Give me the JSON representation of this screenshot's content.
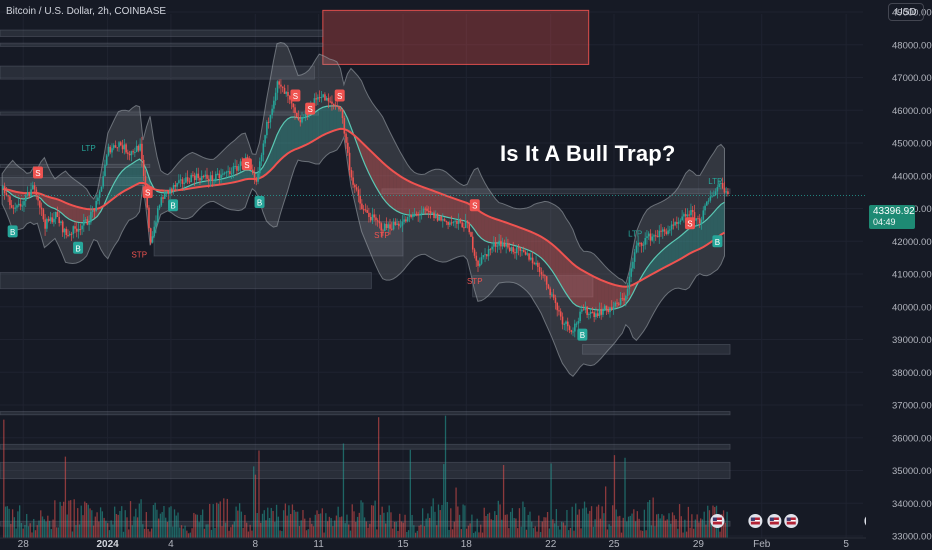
{
  "header": {
    "title": "Bitcoin / U.S. Dollar, 2h, COINBASE",
    "currency": "USD"
  },
  "annotation": {
    "text": "Is It A Bull Trap?"
  },
  "last_price": {
    "value": "43396.92",
    "countdown": "04:49",
    "color": "#1e8a74"
  },
  "colors": {
    "up": "#26a69a",
    "down": "#ef5350",
    "ema": "#ef5350",
    "ema_fast": "#5ac8b4",
    "band": "#9aa0a6",
    "zone": "#ef5350",
    "background": "#161a25"
  },
  "chart_data": {
    "type": "candlestick",
    "title": "Bitcoin / U.S. Dollar, 2h, COINBASE",
    "ylim": [
      33000,
      49000
    ],
    "y_ticks": [
      "49000.00",
      "48000.00",
      "47000.00",
      "46000.00",
      "45000.00",
      "44000.00",
      "43000.00",
      "42000.00",
      "41000.00",
      "40000.00",
      "39000.00",
      "38000.00",
      "37000.00",
      "36000.00",
      "35000.00",
      "34000.00",
      "33000.00"
    ],
    "x_ticks": [
      {
        "label": "28",
        "day": -4
      },
      {
        "label": "2024",
        "day": 0,
        "bold": true
      },
      {
        "label": "4",
        "day": 3
      },
      {
        "label": "8",
        "day": 7
      },
      {
        "label": "11",
        "day": 10
      },
      {
        "label": "15",
        "day": 14
      },
      {
        "label": "18",
        "day": 17
      },
      {
        "label": "22",
        "day": 21
      },
      {
        "label": "25",
        "day": 24
      },
      {
        "label": "29",
        "day": 28
      },
      {
        "label": "Feb",
        "day": 31
      },
      {
        "label": "5",
        "day": 35
      }
    ],
    "xlim_days": [
      -5.1,
      35.8
    ],
    "price_path": [
      {
        "day": -5.0,
        "price": 43600
      },
      {
        "day": -4.5,
        "price": 42900
      },
      {
        "day": -4.0,
        "price": 43200
      },
      {
        "day": -3.5,
        "price": 43700
      },
      {
        "day": -3.0,
        "price": 42500
      },
      {
        "day": -2.5,
        "price": 42800
      },
      {
        "day": -2.0,
        "price": 42200
      },
      {
        "day": -1.5,
        "price": 42400
      },
      {
        "day": -1.0,
        "price": 42600
      },
      {
        "day": -0.5,
        "price": 43200
      },
      {
        "day": 0.0,
        "price": 44800
      },
      {
        "day": 0.5,
        "price": 45000
      },
      {
        "day": 1.0,
        "price": 44700
      },
      {
        "day": 1.5,
        "price": 44900
      },
      {
        "day": 2.0,
        "price": 42000
      },
      {
        "day": 2.5,
        "price": 43300
      },
      {
        "day": 3.0,
        "price": 43600
      },
      {
        "day": 3.5,
        "price": 43800
      },
      {
        "day": 4.0,
        "price": 44000
      },
      {
        "day": 5.0,
        "price": 43900
      },
      {
        "day": 6.0,
        "price": 44200
      },
      {
        "day": 6.5,
        "price": 44500
      },
      {
        "day": 7.0,
        "price": 43700
      },
      {
        "day": 7.5,
        "price": 45500
      },
      {
        "day": 8.0,
        "price": 46800
      },
      {
        "day": 8.5,
        "price": 46400
      },
      {
        "day": 9.0,
        "price": 45600
      },
      {
        "day": 9.5,
        "price": 46000
      },
      {
        "day": 10.0,
        "price": 46500
      },
      {
        "day": 10.5,
        "price": 46200
      },
      {
        "day": 11.0,
        "price": 46100
      },
      {
        "day": 11.5,
        "price": 44000
      },
      {
        "day": 12.0,
        "price": 43000
      },
      {
        "day": 12.5,
        "price": 42700
      },
      {
        "day": 13.0,
        "price": 42400
      },
      {
        "day": 14.0,
        "price": 42600
      },
      {
        "day": 14.5,
        "price": 42800
      },
      {
        "day": 15.0,
        "price": 42900
      },
      {
        "day": 16.0,
        "price": 42600
      },
      {
        "day": 17.0,
        "price": 42500
      },
      {
        "day": 17.5,
        "price": 41300
      },
      {
        "day": 18.0,
        "price": 41700
      },
      {
        "day": 18.5,
        "price": 42000
      },
      {
        "day": 19.0,
        "price": 41800
      },
      {
        "day": 20.0,
        "price": 41500
      },
      {
        "day": 20.5,
        "price": 41100
      },
      {
        "day": 21.0,
        "price": 40400
      },
      {
        "day": 21.5,
        "price": 39600
      },
      {
        "day": 22.0,
        "price": 39300
      },
      {
        "day": 22.5,
        "price": 39900
      },
      {
        "day": 23.0,
        "price": 39800
      },
      {
        "day": 24.0,
        "price": 40000
      },
      {
        "day": 24.5,
        "price": 40300
      },
      {
        "day": 25.0,
        "price": 41800
      },
      {
        "day": 25.5,
        "price": 42100
      },
      {
        "day": 26.0,
        "price": 42200
      },
      {
        "day": 27.0,
        "price": 42500
      },
      {
        "day": 27.5,
        "price": 42900
      },
      {
        "day": 28.0,
        "price": 42600
      },
      {
        "day": 28.5,
        "price": 43300
      },
      {
        "day": 29.0,
        "price": 43800
      },
      {
        "day": 29.4,
        "price": 43400
      }
    ],
    "zones": [
      {
        "day_from": 10.2,
        "day_to": 22.8,
        "low": 47400,
        "high": 49050,
        "color": "#ef5350"
      },
      {
        "day_from": -5.1,
        "day_to": 10.2,
        "low": 48250,
        "high": 48450
      },
      {
        "day_from": -5.1,
        "day_to": 10.2,
        "low": 47950,
        "high": 48050
      },
      {
        "day_from": -5.1,
        "day_to": 9.8,
        "low": 46950,
        "high": 47350
      },
      {
        "day_from": -5.1,
        "day_to": 10.0,
        "low": 45850,
        "high": 45950
      },
      {
        "day_from": -5.1,
        "day_to": 2.0,
        "low": 44250,
        "high": 44350
      },
      {
        "day_from": -5.1,
        "day_to": 2.0,
        "low": 43700,
        "high": 43950
      },
      {
        "day_from": 2.2,
        "day_to": 14.0,
        "low": 41550,
        "high": 42600
      },
      {
        "day_from": -5.1,
        "day_to": 12.5,
        "low": 40550,
        "high": 41050
      },
      {
        "day_from": 17.3,
        "day_to": 23.0,
        "low": 40300,
        "high": 40950
      },
      {
        "day_from": 13.0,
        "day_to": 29.5,
        "low": 43450,
        "high": 43600
      },
      {
        "day_from": 22.5,
        "day_to": 29.5,
        "low": 38550,
        "high": 38850
      },
      {
        "day_from": -5.1,
        "day_to": 29.5,
        "low": 36700,
        "high": 36800
      },
      {
        "day_from": -5.1,
        "day_to": 29.5,
        "low": 35650,
        "high": 35800
      },
      {
        "day_from": -5.1,
        "day_to": 29.5,
        "low": 34750,
        "high": 35250
      },
      {
        "day_from": -5.1,
        "day_to": 29.5,
        "low": 33300,
        "high": 33450
      }
    ],
    "signals": [
      {
        "label": "S",
        "day": -3.3,
        "price": 44100,
        "kind": "sell"
      },
      {
        "label": "B",
        "day": -4.5,
        "price": 42300,
        "kind": "buy"
      },
      {
        "label": "B",
        "day": -1.4,
        "price": 41800,
        "kind": "buy"
      },
      {
        "label": "S",
        "day": 1.9,
        "price": 43500,
        "kind": "sell"
      },
      {
        "label": "B",
        "day": 3.1,
        "price": 43100,
        "kind": "buy"
      },
      {
        "label": "S",
        "day": 6.6,
        "price": 44350,
        "kind": "sell"
      },
      {
        "label": "B",
        "day": 7.2,
        "price": 43200,
        "kind": "buy"
      },
      {
        "label": "S",
        "day": 8.9,
        "price": 46450,
        "kind": "sell"
      },
      {
        "label": "S",
        "day": 9.6,
        "price": 46050,
        "kind": "sell"
      },
      {
        "label": "S",
        "day": 11.0,
        "price": 46450,
        "kind": "sell"
      },
      {
        "label": "S",
        "day": 17.4,
        "price": 43100,
        "kind": "sell"
      },
      {
        "label": "B",
        "day": 22.5,
        "price": 39150,
        "kind": "buy"
      },
      {
        "label": "S",
        "day": 27.6,
        "price": 42550,
        "kind": "sell"
      },
      {
        "label": "B",
        "day": 28.9,
        "price": 42000,
        "kind": "buy"
      }
    ],
    "text_labels": [
      {
        "text": "LTP",
        "day": -0.9,
        "price": 44750,
        "color": "#26a69a"
      },
      {
        "text": "STP",
        "day": 1.5,
        "price": 41500,
        "color": "#ef5350"
      },
      {
        "text": "STP",
        "day": 13.0,
        "price": 42100,
        "color": "#ef5350"
      },
      {
        "text": "STP",
        "day": 17.4,
        "price": 40700,
        "color": "#ef5350"
      },
      {
        "text": "LTP",
        "day": 25.0,
        "price": 42150,
        "color": "#26a69a"
      },
      {
        "text": "LTP",
        "day": 28.8,
        "price": 43750,
        "color": "#26a69a"
      }
    ],
    "calendar_markers_days": [
      28.9,
      30.7,
      31.6,
      32.4,
      36.2
    ]
  }
}
